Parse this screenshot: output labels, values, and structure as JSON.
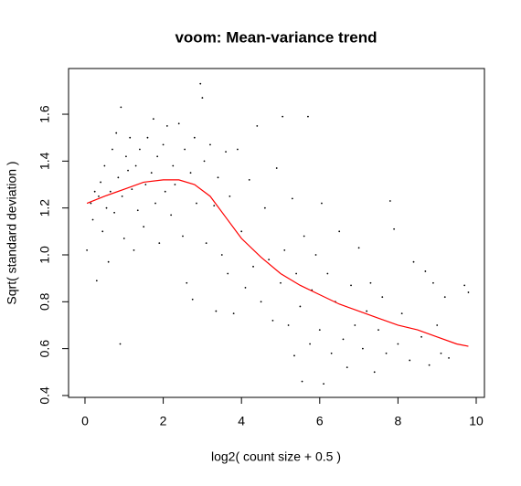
{
  "chart_data": {
    "type": "scatter",
    "title": "voom: Mean-variance trend",
    "xlabel": "log2( count size + 0.5 )",
    "ylabel": "Sqrt( standard deviation )",
    "color": "#000000",
    "x": [
      0.05,
      0.15,
      0.2,
      0.25,
      0.3,
      0.35,
      0.4,
      0.45,
      0.5,
      0.55,
      0.6,
      0.65,
      0.7,
      0.75,
      0.8,
      0.85,
      0.9,
      0.92,
      0.95,
      1.0,
      1.05,
      1.1,
      1.15,
      1.2,
      1.25,
      1.3,
      1.35,
      1.4,
      1.5,
      1.55,
      1.6,
      1.7,
      1.75,
      1.8,
      1.85,
      1.9,
      2.0,
      2.05,
      2.1,
      2.2,
      2.25,
      2.3,
      2.4,
      2.5,
      2.55,
      2.6,
      2.7,
      2.75,
      2.8,
      2.85,
      2.95,
      3.0,
      3.05,
      3.1,
      3.2,
      3.3,
      3.35,
      3.4,
      3.5,
      3.6,
      3.65,
      3.7,
      3.8,
      3.9,
      4.0,
      4.1,
      4.2,
      4.3,
      4.4,
      4.5,
      4.6,
      4.7,
      4.8,
      4.9,
      5.0,
      5.05,
      5.1,
      5.2,
      5.3,
      5.35,
      5.4,
      5.5,
      5.55,
      5.6,
      5.7,
      5.75,
      5.8,
      5.9,
      6.0,
      6.05,
      6.1,
      6.2,
      6.3,
      6.4,
      6.5,
      6.6,
      6.7,
      6.8,
      6.9,
      7.0,
      7.1,
      7.2,
      7.3,
      7.4,
      7.5,
      7.6,
      7.7,
      7.8,
      7.9,
      8.0,
      8.1,
      8.3,
      8.4,
      8.6,
      8.7,
      8.8,
      8.9,
      9.0,
      9.1,
      9.2,
      9.3,
      9.7,
      9.8
    ],
    "values": [
      1.02,
      1.22,
      1.15,
      1.27,
      0.89,
      1.25,
      1.31,
      1.1,
      1.38,
      1.2,
      0.97,
      1.27,
      1.45,
      1.18,
      1.52,
      1.33,
      0.62,
      1.63,
      1.25,
      1.07,
      1.42,
      1.36,
      1.5,
      1.28,
      1.02,
      1.38,
      1.19,
      1.45,
      1.12,
      1.3,
      1.5,
      1.35,
      1.58,
      1.22,
      1.42,
      1.05,
      1.47,
      1.27,
      1.55,
      1.17,
      1.38,
      1.3,
      1.56,
      1.08,
      1.45,
      0.88,
      1.35,
      0.81,
      1.5,
      1.22,
      1.73,
      1.67,
      1.4,
      1.05,
      1.47,
      1.21,
      0.76,
      1.33,
      1.0,
      1.44,
      0.92,
      1.25,
      0.75,
      1.45,
      1.1,
      0.86,
      1.32,
      0.95,
      1.55,
      0.8,
      1.2,
      0.98,
      0.72,
      1.37,
      0.88,
      1.59,
      1.02,
      0.7,
      1.24,
      0.57,
      0.92,
      0.78,
      0.46,
      1.08,
      1.59,
      0.62,
      0.85,
      1.0,
      0.68,
      1.22,
      0.45,
      0.92,
      0.58,
      0.8,
      1.1,
      0.64,
      0.52,
      0.87,
      0.7,
      1.03,
      0.6,
      0.76,
      0.88,
      0.5,
      0.68,
      0.82,
      0.58,
      1.23,
      1.11,
      0.62,
      0.75,
      0.55,
      0.97,
      0.65,
      0.93,
      0.53,
      0.88,
      0.7,
      0.58,
      0.82,
      0.56,
      0.87,
      0.84
    ],
    "trend": {
      "type": "line",
      "color": "#ff0000",
      "x": [
        0.05,
        0.5,
        1,
        1.5,
        2,
        2.4,
        2.8,
        3.2,
        3.6,
        4,
        4.5,
        5,
        5.5,
        6,
        6.5,
        7,
        7.5,
        8,
        8.5,
        9,
        9.5,
        9.8
      ],
      "values": [
        1.22,
        1.25,
        1.28,
        1.31,
        1.32,
        1.32,
        1.3,
        1.25,
        1.16,
        1.07,
        0.99,
        0.92,
        0.87,
        0.83,
        0.79,
        0.76,
        0.73,
        0.7,
        0.68,
        0.65,
        0.62,
        0.61
      ]
    },
    "xlim": [
      -0.42,
      10.21
    ],
    "ylim": [
      0.392,
      1.795
    ],
    "xticks": [
      0,
      2,
      4,
      6,
      8,
      10
    ],
    "yticks": [
      0.4,
      0.6,
      0.8,
      {
        "value": 1,
        "label": "1.0"
      },
      1.2,
      1.4,
      1.6
    ]
  }
}
